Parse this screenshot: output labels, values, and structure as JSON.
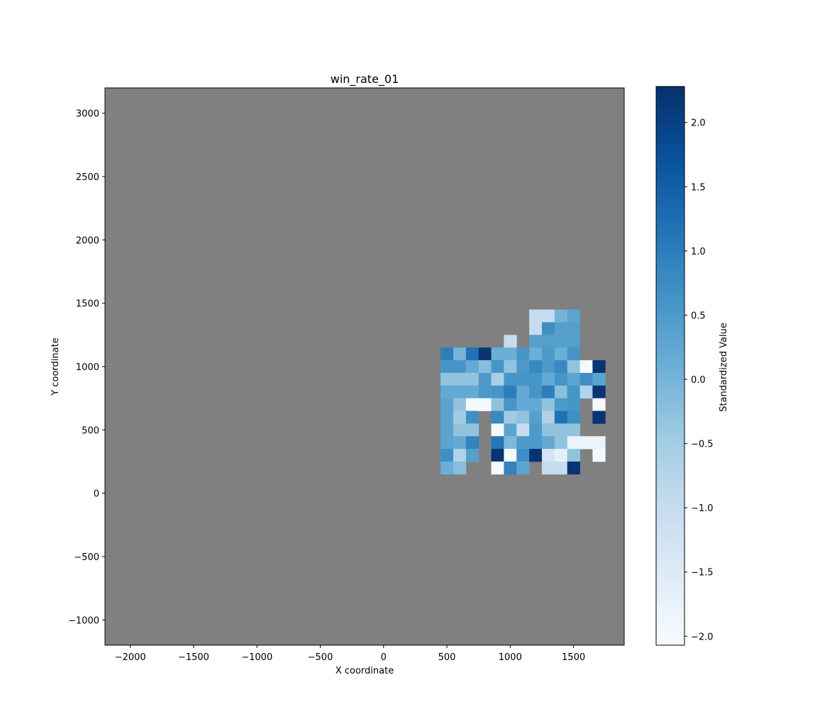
{
  "chart_data": {
    "type": "heatmap",
    "title": "win_rate_01",
    "xlabel": "X coordinate",
    "ylabel": "Y coordinate",
    "xlim": [
      -2200,
      1900
    ],
    "ylim": [
      -1200,
      3200
    ],
    "xticks": [
      -2000,
      -1500,
      -1000,
      -500,
      0,
      500,
      1000,
      1500
    ],
    "xtick_labels": [
      "−2000",
      "−1500",
      "−1000",
      "−500",
      "0",
      "500",
      "1000",
      "1500"
    ],
    "yticks": [
      -1000,
      -500,
      0,
      500,
      1000,
      1500,
      2000,
      2500,
      3000
    ],
    "ytick_labels": [
      "−1000",
      "−500",
      "0",
      "500",
      "1000",
      "1500",
      "2000",
      "2500",
      "3000"
    ],
    "background_color": "#808080",
    "colormap": "Blues",
    "colorbar": {
      "label": "Standardized Value",
      "vmin": -2.07,
      "vmax": 2.28,
      "ticks": [
        -2.0,
        -1.5,
        -1.0,
        -0.5,
        0.0,
        0.5,
        1.0,
        1.5,
        2.0
      ],
      "tick_labels": [
        "−2.0",
        "−1.5",
        "−1.0",
        "−0.5",
        "0.0",
        "0.5",
        "1.0",
        "1.5",
        "2.0"
      ]
    },
    "grid": {
      "x0": 450,
      "dx": 100,
      "y_top": 1450,
      "dy": 100,
      "columns": 13,
      "rows": 13
    },
    "cells": [
      [
        null,
        null,
        null,
        null,
        null,
        null,
        null,
        -1.0,
        -1.0,
        0.0,
        0.3,
        null,
        null
      ],
      [
        null,
        null,
        null,
        null,
        null,
        null,
        null,
        -1.0,
        0.7,
        0.4,
        0.4,
        null,
        null
      ],
      [
        null,
        null,
        null,
        null,
        null,
        -1.0,
        null,
        0.4,
        0.4,
        0.4,
        0.4,
        null,
        null
      ],
      [
        1.0,
        0.0,
        1.2,
        2.2,
        0.1,
        0.1,
        0.6,
        0.1,
        0.5,
        0.1,
        0.6,
        null,
        null
      ],
      [
        0.6,
        0.6,
        0.2,
        -0.2,
        0.6,
        -0.3,
        0.5,
        0.8,
        0.5,
        0.8,
        -0.3,
        -2.0,
        2.2
      ],
      [
        -0.3,
        -0.3,
        -0.3,
        0.5,
        -0.6,
        0.6,
        0.6,
        0.6,
        0.2,
        0.6,
        0.3,
        0.7,
        0.3
      ],
      [
        0.2,
        0.2,
        0.2,
        0.5,
        0.6,
        1.0,
        0.2,
        0.6,
        1.0,
        -0.2,
        0.6,
        -0.7,
        2.2
      ],
      [
        0.3,
        -0.3,
        -2.0,
        -2.0,
        -0.3,
        0.6,
        0.2,
        0.2,
        -0.3,
        0.5,
        0.6,
        null,
        -2.0
      ],
      [
        0.3,
        -0.5,
        0.7,
        null,
        0.8,
        -0.5,
        -0.3,
        0.4,
        -0.7,
        1.2,
        0.7,
        null,
        2.2
      ],
      [
        0.3,
        -0.3,
        -0.3,
        null,
        -2.0,
        0.3,
        -1.0,
        0.5,
        -0.3,
        -0.3,
        -0.3,
        null,
        null
      ],
      [
        0.3,
        0.2,
        0.9,
        null,
        1.1,
        -0.1,
        0.5,
        0.5,
        0.2,
        -0.3,
        -1.8,
        -1.8,
        -1.8
      ],
      [
        0.7,
        -0.7,
        0.4,
        null,
        2.2,
        -2.0,
        0.7,
        2.2,
        -1.3,
        -1.7,
        -0.3,
        null,
        -2.0
      ],
      [
        0.1,
        -0.2,
        null,
        null,
        -2.0,
        0.9,
        0.3,
        null,
        -1.0,
        -1.0,
        2.2,
        null,
        null
      ]
    ]
  }
}
